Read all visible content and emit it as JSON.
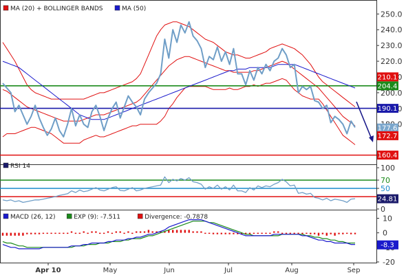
{
  "chart_data": {
    "type": "line",
    "months": [
      "Apr 10",
      "May",
      "Jun",
      "Jul",
      "Aug",
      "Sep"
    ],
    "price_panel": {
      "legend": [
        {
          "label": "MA (20) + BOLLINGER BANDS",
          "color": "#e01010"
        },
        {
          "label": "MA (50)",
          "color": "#1a1acc"
        }
      ],
      "y_ticks": [
        250.0,
        240.0,
        230.0,
        220.0,
        210.0,
        200.0,
        190.0,
        180.0
      ],
      "y_tick_labels": [
        "250.0",
        "240.0",
        "230.0",
        "220.0",
        "210.0",
        "200.0",
        "190.0",
        "180.0"
      ],
      "ylim": [
        155,
        258
      ],
      "horizontal_lines": [
        {
          "value": 204.4,
          "label": "204.4",
          "color": "#1a8a1a"
        },
        {
          "value": 190.1,
          "label": "190.1",
          "color": "#1a1aaa"
        },
        {
          "value": 160.4,
          "label": "160.4",
          "color": "#e01010"
        }
      ],
      "tags": [
        {
          "value": 210.1,
          "label": "210.1",
          "color": "#e01010"
        },
        {
          "value": 177.6,
          "label": "177.6",
          "color": "#7aa6cc"
        },
        {
          "value": 172.7,
          "label": "172.7",
          "color": "#e01010"
        }
      ],
      "price": [
        206,
        203,
        200,
        188,
        192,
        186,
        180,
        185,
        192,
        184,
        178,
        173,
        177,
        184,
        176,
        172,
        180,
        190,
        179,
        186,
        180,
        178,
        188,
        192,
        185,
        176,
        184,
        190,
        194,
        184,
        191,
        198,
        194,
        191,
        186,
        196,
        200,
        203,
        206,
        212,
        234,
        222,
        240,
        232,
        243,
        238,
        245,
        236,
        233,
        228,
        216,
        223,
        221,
        229,
        220,
        226,
        218,
        228,
        212,
        212,
        205,
        214,
        208,
        216,
        212,
        218,
        214,
        220,
        222,
        228,
        224,
        216,
        218,
        200,
        204,
        202,
        204,
        195,
        194,
        190,
        192,
        181,
        185,
        183,
        180,
        174,
        182,
        178
      ],
      "ma20": [
        202,
        201,
        199,
        197,
        195,
        193,
        191,
        190,
        189,
        188,
        187,
        186,
        185,
        184,
        183,
        182,
        182,
        182,
        182,
        182,
        183,
        184,
        185,
        186,
        186,
        186,
        187,
        188,
        189,
        190,
        191,
        192,
        193,
        194,
        196,
        199,
        202,
        205,
        208,
        211,
        214,
        217,
        219,
        221,
        222,
        223,
        223,
        222,
        221,
        220,
        219,
        218,
        217,
        216,
        215,
        214,
        214,
        213,
        213,
        213,
        213,
        213,
        214,
        214,
        215,
        216,
        217,
        218,
        219,
        220,
        219,
        217,
        215,
        213,
        211,
        209,
        207,
        205,
        203,
        200,
        197,
        194,
        191,
        188,
        185,
        183,
        181,
        179
      ],
      "upper_band": [
        232,
        228,
        224,
        220,
        215,
        210,
        205,
        202,
        200,
        199,
        198,
        197,
        196,
        196,
        196,
        196,
        196,
        196,
        196,
        196,
        196,
        197,
        198,
        199,
        200,
        200,
        201,
        202,
        203,
        204,
        205,
        206,
        207,
        209,
        212,
        218,
        224,
        230,
        236,
        240,
        243,
        244,
        245,
        245,
        244,
        243,
        242,
        240,
        238,
        236,
        234,
        233,
        232,
        230,
        228,
        226,
        225,
        224,
        224,
        223,
        222,
        222,
        223,
        224,
        225,
        226,
        228,
        229,
        230,
        231,
        230,
        229,
        228,
        226,
        224,
        221,
        218,
        214,
        210,
        207,
        205,
        203,
        201,
        199,
        197,
        195,
        193,
        191
      ],
      "lower_band": [
        172,
        174,
        174,
        174,
        175,
        176,
        177,
        178,
        178,
        177,
        176,
        175,
        174,
        172,
        170,
        168,
        168,
        168,
        168,
        168,
        170,
        171,
        172,
        173,
        172,
        172,
        173,
        174,
        175,
        176,
        177,
        178,
        179,
        179,
        180,
        180,
        180,
        180,
        180,
        182,
        185,
        190,
        193,
        197,
        200,
        203,
        204,
        204,
        204,
        204,
        204,
        203,
        202,
        202,
        202,
        202,
        203,
        202,
        202,
        203,
        204,
        204,
        205,
        204,
        205,
        206,
        206,
        207,
        208,
        209,
        208,
        205,
        202,
        200,
        198,
        197,
        196,
        196,
        196,
        193,
        189,
        185,
        181,
        177,
        173,
        171,
        169,
        167
      ],
      "ma50": [
        220,
        219,
        218,
        217,
        216,
        214,
        212,
        210,
        208,
        206,
        204,
        202,
        200,
        198,
        196,
        194,
        192,
        190,
        188,
        186,
        185,
        184,
        183,
        183,
        183,
        183,
        184,
        185,
        186,
        187,
        188,
        189,
        190,
        191,
        192,
        193,
        194,
        195,
        196,
        197,
        198,
        199,
        200,
        201,
        202,
        203,
        204,
        205,
        206,
        207,
        208,
        209,
        210,
        211,
        212,
        213,
        214,
        214,
        215,
        215,
        215,
        216,
        216,
        216,
        216,
        216,
        216,
        217,
        218,
        218,
        218,
        218,
        218,
        217,
        216,
        215,
        214,
        213,
        212,
        211,
        210,
        209,
        208,
        207,
        206,
        205,
        204,
        203
      ]
    },
    "rsi_panel": {
      "legend": {
        "label": "RSI 14",
        "color": "#1a1a6a"
      },
      "y_ticks": [
        100,
        70,
        50,
        0
      ],
      "y_tick_labels": [
        "100",
        "70",
        "50",
        "0"
      ],
      "ylim": [
        0,
        100
      ],
      "level_lines": [
        {
          "value": 70,
          "label": "70",
          "color": "#1a8a1a"
        },
        {
          "value": 50,
          "label": "50",
          "color": "#1a8acc"
        },
        {
          "value": 30,
          "color": "#e01010"
        }
      ],
      "tag": {
        "value": 24.81,
        "label": "24.81",
        "color": "#1a1a6a"
      },
      "values": [
        22,
        20,
        22,
        18,
        20,
        16,
        18,
        20,
        22,
        22,
        24,
        26,
        28,
        30,
        33,
        35,
        37,
        44,
        40,
        46,
        42,
        44,
        48,
        52,
        46,
        44,
        48,
        52,
        54,
        45,
        44,
        48,
        52,
        44,
        46,
        50,
        52,
        54,
        56,
        58,
        78,
        64,
        72,
        68,
        74,
        70,
        76,
        66,
        64,
        60,
        48,
        54,
        50,
        58,
        48,
        54,
        46,
        58,
        44,
        44,
        40,
        52,
        46,
        56,
        52,
        56,
        54,
        60,
        64,
        72,
        66,
        56,
        58,
        38,
        40,
        36,
        38,
        28,
        26,
        22,
        26,
        20,
        24,
        22,
        20,
        16,
        24,
        25
      ]
    },
    "macd_panel": {
      "legend": [
        {
          "label": "MACD (26, 12)",
          "color": "#1a1acc"
        },
        {
          "label": "EXP (9): -7.511",
          "color": "#1a8a1a"
        },
        {
          "label": "Divergence: -0.7878",
          "color": "#e01010"
        }
      ],
      "y_ticks": [
        10,
        0,
        -10,
        -20
      ],
      "y_tick_labels": [
        "10",
        "0",
        "-10",
        "-20"
      ],
      "ylim": [
        -20,
        14
      ],
      "tag": {
        "value": -8.3,
        "label": "-8.3",
        "color": "#1a1acc"
      },
      "macd": [
        -8,
        -9,
        -10,
        -10,
        -11,
        -11,
        -11,
        -11,
        -11,
        -11,
        -10,
        -10,
        -10,
        -10,
        -10,
        -10,
        -10,
        -9,
        -9,
        -9,
        -8,
        -8,
        -7,
        -7,
        -7,
        -7,
        -6,
        -6,
        -5,
        -5,
        -5,
        -4,
        -4,
        -3,
        -3,
        -2,
        -1,
        -1,
        0,
        1,
        2,
        4,
        5,
        6,
        7,
        8,
        9,
        9,
        9,
        9,
        8,
        7,
        6,
        5,
        4,
        3,
        2,
        1,
        0,
        -1,
        -2,
        -2,
        -2,
        -2,
        -2,
        -2,
        -2,
        -1,
        -1,
        -1,
        -1,
        -1,
        -1,
        -1,
        -2,
        -2,
        -3,
        -4,
        -5,
        -5,
        -6,
        -6,
        -7,
        -7,
        -7,
        -7,
        -8,
        -8
      ],
      "signal": [
        -6,
        -7,
        -7,
        -8,
        -9,
        -9,
        -10,
        -10,
        -10,
        -10,
        -10,
        -10,
        -10,
        -10,
        -10,
        -10,
        -10,
        -10,
        -9,
        -9,
        -9,
        -8,
        -8,
        -8,
        -7,
        -7,
        -7,
        -6,
        -6,
        -6,
        -5,
        -5,
        -4,
        -4,
        -4,
        -3,
        -2,
        -2,
        -1,
        0,
        1,
        2,
        3,
        4,
        5,
        6,
        7,
        8,
        8,
        8,
        8,
        7,
        7,
        6,
        5,
        4,
        3,
        2,
        1,
        0,
        -1,
        -1,
        -2,
        -2,
        -2,
        -2,
        -2,
        -2,
        -2,
        -1,
        -1,
        -1,
        -1,
        -1,
        -1,
        -2,
        -2,
        -3,
        -3,
        -4,
        -4,
        -5,
        -5,
        -6,
        -6,
        -7,
        -7,
        -7
      ],
      "divergence": [
        -2,
        -2,
        -2,
        -2,
        -2,
        -2,
        -1,
        -1,
        -1,
        -1,
        0,
        0,
        0,
        0,
        0,
        0,
        0,
        1,
        0,
        0,
        1,
        0,
        1,
        1,
        0,
        0,
        1,
        0,
        1,
        1,
        0,
        1,
        0,
        1,
        1,
        1,
        2,
        1,
        1,
        1,
        1,
        2,
        2,
        2,
        2,
        2,
        2,
        1,
        1,
        1,
        0,
        0,
        -1,
        -1,
        -1,
        -1,
        -1,
        -1,
        -1,
        -1,
        -1,
        -1,
        0,
        0,
        0,
        0,
        0,
        1,
        1,
        0,
        0,
        0,
        0,
        0,
        -1,
        0,
        -1,
        -1,
        -2,
        -1,
        -2,
        -1,
        -2,
        -1,
        -1,
        0,
        -1,
        -1
      ]
    }
  }
}
